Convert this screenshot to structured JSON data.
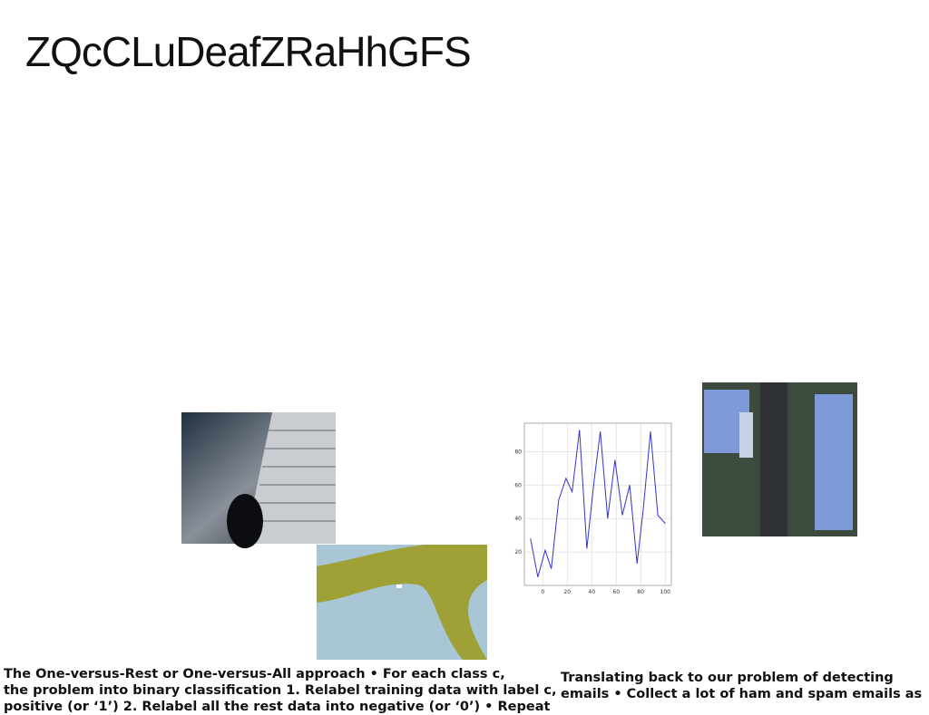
{
  "title": "ZQcCLuDeafZRaHhGFS",
  "left_text": [
    "The One-versus-Rest or One-versus-All approach • For each class c,",
    "the problem into binary classification 1. Relabel training data with label c,",
    "positive (or ‘1’) 2. Relabel all the rest data into negative (or ‘0’) • Repeat"
  ],
  "right_text": [
    "Translating back to our problem of detecting",
    "emails • Collect a lot of ham and spam emails as"
  ],
  "plot": {
    "type": "line",
    "color": "#3333cc",
    "x": [
      -10,
      -4,
      2,
      7,
      13,
      19,
      24,
      30,
      36,
      42,
      47,
      53,
      59,
      65,
      71,
      77,
      82,
      88,
      94,
      100
    ],
    "values": [
      28,
      5,
      21,
      10,
      51,
      64,
      56,
      93,
      22,
      63,
      92,
      40,
      75,
      42,
      60,
      13,
      45,
      92,
      42,
      37
    ],
    "xlim": [
      -15,
      105
    ],
    "ylim": [
      0,
      97
    ],
    "xticks": [
      0,
      20,
      40,
      60,
      80,
      100
    ],
    "yticks": [
      20,
      40,
      60,
      80
    ],
    "grid": true
  }
}
